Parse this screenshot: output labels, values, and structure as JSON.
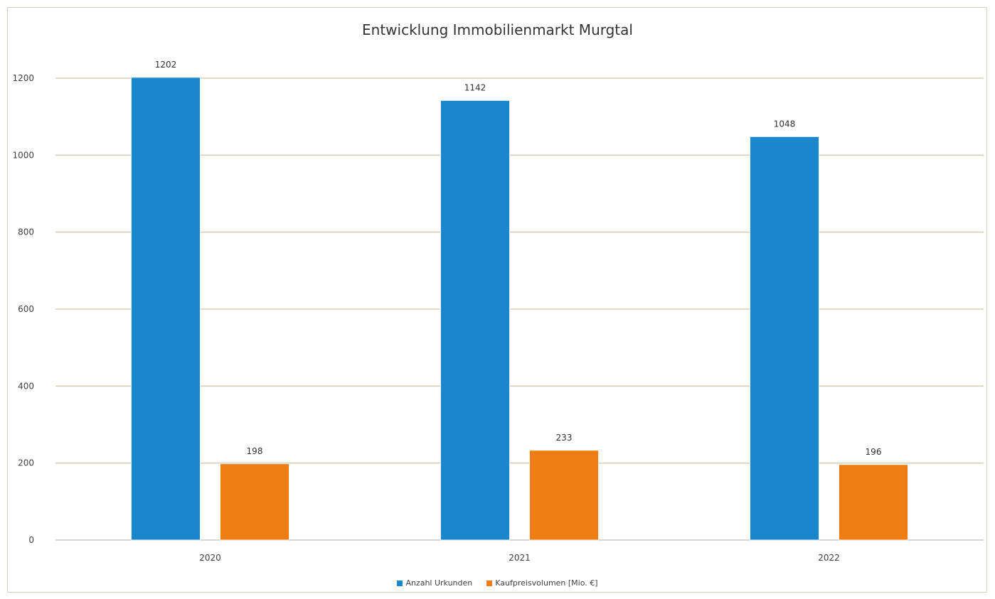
{
  "chart_data": {
    "type": "bar",
    "title": "Entwicklung Immobilienmarkt Murgtal",
    "xlabel": "",
    "ylabel": "",
    "categories": [
      "2020",
      "2021",
      "2022"
    ],
    "series": [
      {
        "name": "Anzahl Urkunden",
        "values": [
          1202,
          1142,
          1048
        ],
        "color": "#1a86cc"
      },
      {
        "name": "Kaufpreisvolumen [Mio. €]",
        "values": [
          198,
          233,
          196
        ],
        "color": "#ee7d14"
      }
    ],
    "ylim": [
      0,
      1200
    ],
    "yticks": [
      "0",
      "200",
      "400",
      "600",
      "800",
      "1000",
      "1200"
    ],
    "grid": true,
    "legend": "bottom-center",
    "data_labels": true
  }
}
